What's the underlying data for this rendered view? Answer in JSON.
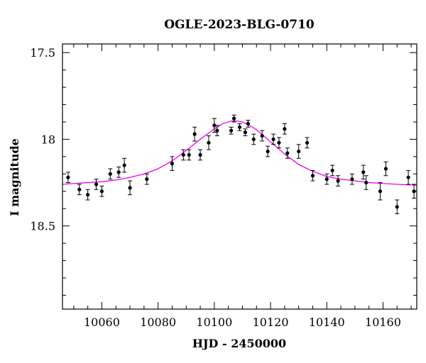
{
  "chart_data": {
    "type": "scatter",
    "title": "OGLE-2023-BLG-0710",
    "xlabel": "HJD - 2450000",
    "ylabel": "I magnitude",
    "xlim": [
      10046,
      10172
    ],
    "ylim": [
      17.45,
      18.98
    ],
    "y_inverted": true,
    "grid": false,
    "x_ticks": [
      10060,
      10080,
      10100,
      10120,
      10140,
      10160
    ],
    "x_tick_labels": [
      "10060",
      "10080",
      "10100",
      "10120",
      "10140",
      "10160"
    ],
    "y_ticks": [
      17.5,
      18,
      18.5
    ],
    "y_tick_labels": [
      "17.5",
      "18",
      "18.5"
    ],
    "colors": {
      "data": "#000000",
      "model": "#ee00ee"
    },
    "series": [
      {
        "type": "errorbar",
        "x": [
          10048,
          10052,
          10055,
          10058,
          10060,
          10063,
          10066,
          10068,
          10070,
          10076,
          10085,
          10089,
          10091,
          10093,
          10095,
          10098,
          10100,
          10101,
          10106,
          10107,
          10109,
          10111,
          10112,
          10114,
          10117,
          10119,
          10121,
          10123,
          10125,
          10126,
          10130,
          10133,
          10135,
          10140,
          10142,
          10144,
          10149,
          10153,
          10154,
          10159,
          10161,
          10165,
          10169,
          10171
        ],
        "y": [
          18.22,
          18.29,
          18.32,
          18.26,
          18.3,
          18.2,
          18.19,
          18.15,
          18.28,
          18.23,
          18.14,
          18.09,
          18.09,
          17.97,
          18.09,
          18.02,
          17.92,
          17.95,
          17.95,
          17.88,
          17.93,
          17.96,
          17.91,
          18.0,
          17.98,
          18.07,
          18.0,
          18.02,
          17.94,
          18.08,
          18.07,
          18.02,
          18.21,
          18.23,
          18.18,
          18.24,
          18.23,
          18.19,
          18.25,
          18.3,
          18.17,
          18.39,
          18.22,
          18.3
        ],
        "yerr": [
          0.03,
          0.03,
          0.03,
          0.03,
          0.03,
          0.03,
          0.03,
          0.04,
          0.04,
          0.03,
          0.04,
          0.03,
          0.03,
          0.04,
          0.03,
          0.04,
          0.04,
          0.03,
          0.02,
          0.02,
          0.02,
          0.02,
          0.02,
          0.03,
          0.03,
          0.03,
          0.03,
          0.03,
          0.03,
          0.03,
          0.04,
          0.03,
          0.03,
          0.03,
          0.03,
          0.03,
          0.03,
          0.04,
          0.04,
          0.05,
          0.04,
          0.04,
          0.04,
          0.04
        ]
      },
      {
        "type": "line",
        "x": [
          10046,
          10050,
          10055,
          10060,
          10065,
          10070,
          10075,
          10080,
          10085,
          10090,
          10095,
          10100,
          10103,
          10106,
          10108,
          10110,
          10112,
          10115,
          10120,
          10125,
          10130,
          10135,
          10140,
          10145,
          10150,
          10155,
          10160,
          10165,
          10172
        ],
        "y": [
          18.26,
          18.255,
          18.25,
          18.245,
          18.235,
          18.22,
          18.2,
          18.17,
          18.125,
          18.065,
          18.0,
          17.94,
          17.91,
          17.895,
          17.895,
          17.9,
          17.915,
          17.945,
          18.015,
          18.085,
          18.145,
          18.185,
          18.215,
          18.23,
          18.24,
          18.25,
          18.255,
          18.26,
          18.265
        ]
      }
    ]
  }
}
